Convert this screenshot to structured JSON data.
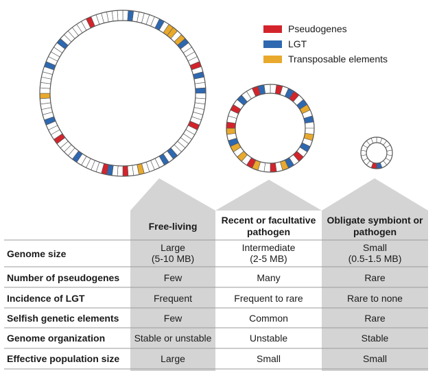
{
  "legend": [
    {
      "label": "Pseudogenes",
      "color": "#d3242c"
    },
    {
      "label": "LGT",
      "color": "#2e68b1"
    },
    {
      "label": "Transposable elements",
      "color": "#e8a92c"
    }
  ],
  "columns": [
    {
      "label": "Free-living"
    },
    {
      "label": "Recent or facultative pathogen"
    },
    {
      "label": "Obligate symbiont or pathogen"
    }
  ],
  "rows": [
    {
      "label": "Genome size",
      "cells": [
        "Large\n(5-10 MB)",
        "Intermediate\n(2-5 MB)",
        "Small\n(0.5-1.5 MB)"
      ]
    },
    {
      "label": "Number of pseudogenes",
      "cells": [
        "Few",
        "Many",
        "Rare"
      ]
    },
    {
      "label": "Incidence of LGT",
      "cells": [
        "Frequent",
        "Frequent to rare",
        "Rare to none"
      ]
    },
    {
      "label": "Selfish genetic elements",
      "cells": [
        "Few",
        "Common",
        "Rare"
      ]
    },
    {
      "label": "Genome organization",
      "cells": [
        "Stable or unstable",
        "Unstable",
        "Stable"
      ]
    },
    {
      "label": "Effective population size",
      "cells": [
        "Large",
        "Small",
        "Small"
      ]
    }
  ],
  "colors": {
    "shade": "#d4d4d4",
    "line": "#555555"
  }
}
